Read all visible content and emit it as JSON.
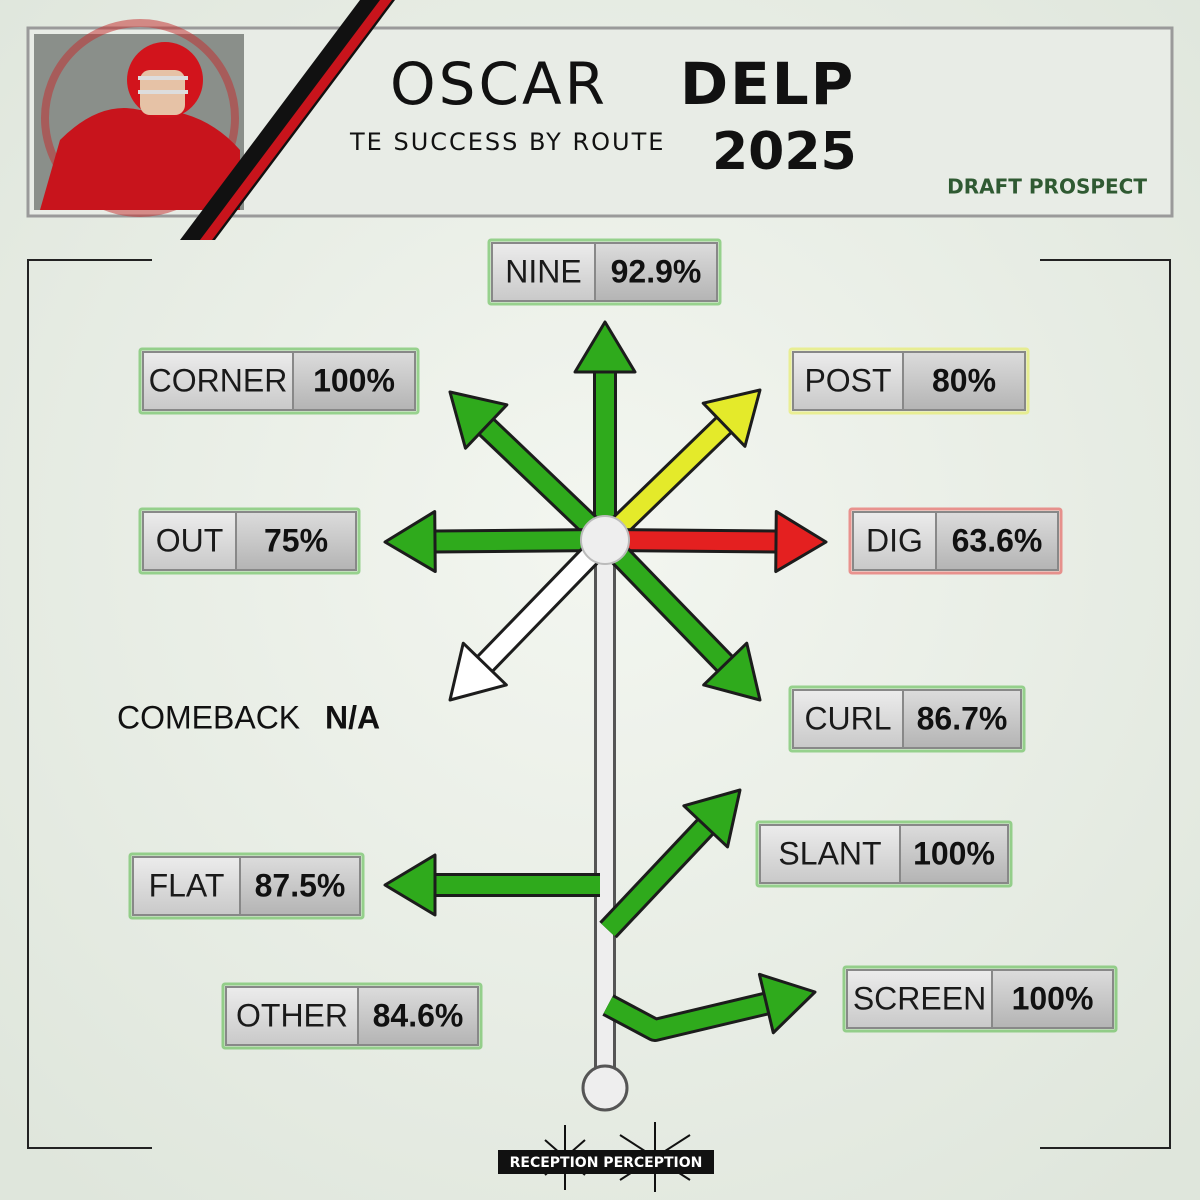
{
  "header": {
    "first_name": "OSCAR",
    "last_name": "DELP",
    "subtitle": "TE SUCCESS BY ROUTE",
    "year": "2025",
    "tag": "DRAFT PROSPECT"
  },
  "routes": [
    {
      "name": "NINE",
      "value": "92.9%",
      "color": "#2faa1c"
    },
    {
      "name": "CORNER",
      "value": "100%",
      "color": "#2faa1c"
    },
    {
      "name": "POST",
      "value": "80%",
      "color": "#e4ea2a"
    },
    {
      "name": "OUT",
      "value": "75%",
      "color": "#2faa1c"
    },
    {
      "name": "DIG",
      "value": "63.6%",
      "color": "#e42020"
    },
    {
      "name": "COMEBACK",
      "value": "N/A",
      "color": "#ffffff"
    },
    {
      "name": "CURL",
      "value": "86.7%",
      "color": "#2faa1c"
    },
    {
      "name": "SLANT",
      "value": "100%",
      "color": "#2faa1c"
    },
    {
      "name": "FLAT",
      "value": "87.5%",
      "color": "#2faa1c"
    },
    {
      "name": "SCREEN",
      "value": "100%",
      "color": "#2faa1c"
    },
    {
      "name": "OTHER",
      "value": "84.6%",
      "color": "#2faa1c"
    }
  ],
  "footer": "RECEPTION PERCEPTION"
}
